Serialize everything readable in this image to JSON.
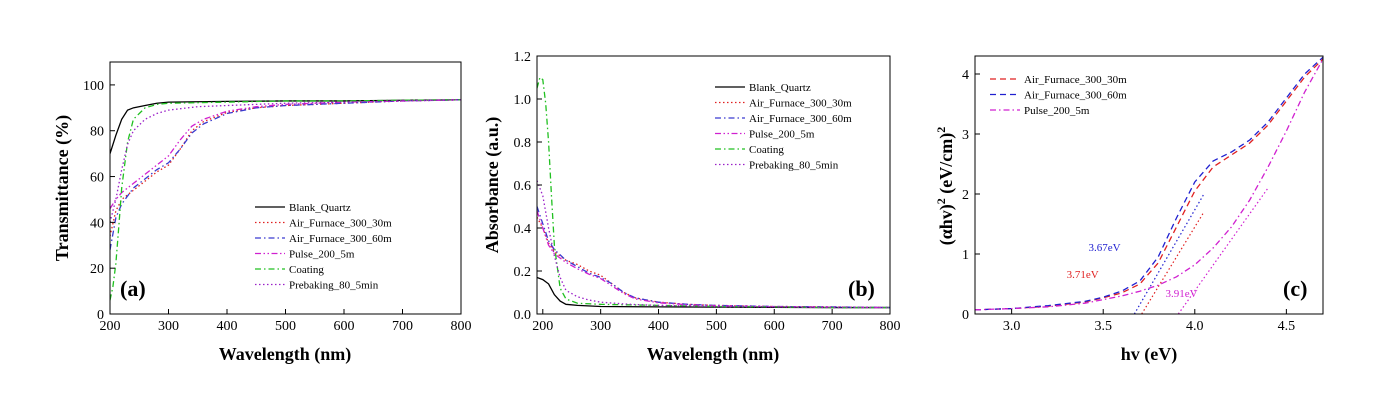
{
  "chart_data": [
    {
      "type": "line",
      "panel_label": "(a)",
      "xlabel": "Wavelength (nm)",
      "ylabel": "Transmittance (%)",
      "xlim": [
        200,
        800
      ],
      "ylim": [
        0,
        110
      ],
      "xticks": [
        200,
        300,
        400,
        500,
        600,
        700,
        800
      ],
      "yticks": [
        0,
        20,
        40,
        60,
        80,
        100
      ],
      "legend_position": "lower-right",
      "series": [
        {
          "name": "Blank_Quartz",
          "color": "#000000",
          "dash": "solid",
          "x": [
            200,
            210,
            220,
            230,
            240,
            260,
            280,
            300,
            400,
            500,
            600,
            700,
            800
          ],
          "y": [
            70,
            78,
            85,
            89,
            90,
            91,
            92,
            92.5,
            92.8,
            93,
            93,
            93.3,
            93.5
          ]
        },
        {
          "name": "Air_Furnace_300_30m",
          "color": "#e02020",
          "dash": "dot",
          "x": [
            200,
            210,
            220,
            240,
            260,
            280,
            300,
            320,
            340,
            360,
            400,
            450,
            500,
            600,
            700,
            800
          ],
          "y": [
            34,
            45,
            50,
            54,
            58,
            62,
            65,
            72,
            80,
            84,
            88,
            90,
            91,
            92,
            93,
            93.5
          ]
        },
        {
          "name": "Air_Furnace_300_60m",
          "color": "#3a3ad0",
          "dash": "dashdot",
          "x": [
            200,
            210,
            220,
            240,
            260,
            280,
            300,
            320,
            340,
            360,
            400,
            450,
            500,
            600,
            700,
            800
          ],
          "y": [
            28,
            42,
            48,
            55,
            59,
            63,
            66,
            72,
            79,
            83,
            87.5,
            90,
            91,
            92,
            93,
            93.5
          ]
        },
        {
          "name": "Pulse_200_5m",
          "color": "#d020d0",
          "dash": "dashdotdot",
          "x": [
            200,
            210,
            220,
            240,
            260,
            280,
            300,
            320,
            340,
            360,
            400,
            450,
            500,
            600,
            700,
            800
          ],
          "y": [
            46,
            50,
            53,
            57,
            61,
            65,
            69,
            76,
            82,
            85,
            88.5,
            90.5,
            91.5,
            92.5,
            93,
            93.5
          ]
        },
        {
          "name": "Coating",
          "color": "#20c020",
          "dash": "dashdot",
          "x": [
            200,
            205,
            210,
            215,
            220,
            230,
            240,
            260,
            280,
            300,
            400,
            500,
            600,
            700,
            800
          ],
          "y": [
            6,
            12,
            22,
            38,
            55,
            75,
            85,
            90,
            91.5,
            92,
            92.5,
            93,
            93,
            93.3,
            93.5
          ]
        },
        {
          "name": "Prebaking_80_5min",
          "color": "#9a20c8",
          "dash": "dot",
          "x": [
            200,
            210,
            220,
            230,
            240,
            260,
            280,
            300,
            350,
            400,
            500,
            600,
            700,
            800
          ],
          "y": [
            40,
            50,
            63,
            74,
            80,
            85,
            87.5,
            89,
            90.5,
            91,
            92,
            92.5,
            93,
            93.5
          ]
        }
      ]
    },
    {
      "type": "line",
      "panel_label": "(b)",
      "xlabel": "Wavelength (nm)",
      "ylabel": "Absorbance (a.u.)",
      "xlim": [
        190,
        800
      ],
      "ylim": [
        0,
        1.2
      ],
      "xticks": [
        200,
        300,
        400,
        500,
        600,
        700,
        800
      ],
      "yticks": [
        0.0,
        0.2,
        0.4,
        0.6,
        0.8,
        1.0,
        1.2
      ],
      "ytick_labels": [
        "0.0",
        "0.2",
        "0.4",
        "0.6",
        "0.8",
        "1.0",
        "1.2"
      ],
      "legend_position": "top-right",
      "series": [
        {
          "name": "Blank_Quartz",
          "color": "#000000",
          "dash": "solid",
          "x": [
            190,
            200,
            210,
            220,
            230,
            240,
            260,
            300,
            400,
            500,
            600,
            700,
            800
          ],
          "y": [
            0.17,
            0.16,
            0.14,
            0.09,
            0.06,
            0.045,
            0.04,
            0.035,
            0.033,
            0.032,
            0.031,
            0.03,
            0.03
          ]
        },
        {
          "name": "Air_Furnace_300_30m",
          "color": "#e02020",
          "dash": "dot",
          "x": [
            190,
            200,
            210,
            220,
            240,
            260,
            280,
            300,
            320,
            340,
            360,
            400,
            450,
            500,
            600,
            700,
            800
          ],
          "y": [
            0.45,
            0.4,
            0.33,
            0.29,
            0.25,
            0.23,
            0.2,
            0.18,
            0.14,
            0.1,
            0.075,
            0.055,
            0.045,
            0.04,
            0.035,
            0.033,
            0.03
          ]
        },
        {
          "name": "Air_Furnace_300_60m",
          "color": "#3a3ad0",
          "dash": "dashdot",
          "x": [
            190,
            200,
            210,
            220,
            240,
            260,
            280,
            300,
            320,
            340,
            360,
            400,
            450,
            500,
            600,
            700,
            800
          ],
          "y": [
            0.5,
            0.42,
            0.34,
            0.3,
            0.25,
            0.22,
            0.19,
            0.17,
            0.14,
            0.1,
            0.075,
            0.055,
            0.045,
            0.04,
            0.035,
            0.033,
            0.03
          ]
        },
        {
          "name": "Pulse_200_5m",
          "color": "#d020d0",
          "dash": "dashdotdot",
          "x": [
            190,
            200,
            210,
            220,
            240,
            260,
            280,
            300,
            320,
            340,
            360,
            400,
            450,
            500,
            600,
            700,
            800
          ],
          "y": [
            0.48,
            0.4,
            0.32,
            0.28,
            0.24,
            0.21,
            0.185,
            0.165,
            0.13,
            0.095,
            0.07,
            0.052,
            0.043,
            0.038,
            0.034,
            0.032,
            0.03
          ]
        },
        {
          "name": "Coating",
          "color": "#20c020",
          "dash": "dashdot",
          "x": [
            190,
            195,
            200,
            205,
            210,
            215,
            220,
            230,
            240,
            260,
            300,
            400,
            500,
            600,
            700,
            800
          ],
          "y": [
            1.05,
            1.1,
            1.09,
            0.98,
            0.8,
            0.55,
            0.32,
            0.12,
            0.07,
            0.05,
            0.045,
            0.04,
            0.035,
            0.033,
            0.03,
            0.03
          ]
        },
        {
          "name": "Prebaking_80_5min",
          "color": "#9a20c8",
          "dash": "dot",
          "x": [
            190,
            200,
            210,
            220,
            230,
            240,
            260,
            280,
            300,
            350,
            400,
            500,
            600,
            700,
            800
          ],
          "y": [
            0.62,
            0.55,
            0.4,
            0.27,
            0.17,
            0.11,
            0.08,
            0.065,
            0.055,
            0.045,
            0.04,
            0.035,
            0.033,
            0.03,
            0.03
          ]
        }
      ]
    },
    {
      "type": "line",
      "panel_label": "(c)",
      "xlabel": "hv (eV)",
      "ylabel": "(αhv)² (eV/cm)²",
      "ylabel_parts": [
        "(αhv)",
        "2",
        " (eV/cm)",
        "2"
      ],
      "xlim": [
        2.8,
        4.7
      ],
      "ylim": [
        0,
        4.3
      ],
      "xticks": [
        3.0,
        3.5,
        4.0,
        4.5
      ],
      "xtick_labels": [
        "3.0",
        "3.5",
        "4.0",
        "4.5"
      ],
      "yticks": [
        0,
        1,
        2,
        3,
        4
      ],
      "legend_position": "top-left",
      "series": [
        {
          "name": "Air_Furnace_300_30m",
          "color": "#e02020",
          "dash": "dash",
          "x": [
            2.8,
            3.0,
            3.2,
            3.4,
            3.5,
            3.6,
            3.7,
            3.8,
            3.9,
            4.0,
            4.1,
            4.2,
            4.3,
            4.4,
            4.5,
            4.6,
            4.7
          ],
          "y": [
            0.07,
            0.09,
            0.13,
            0.2,
            0.27,
            0.35,
            0.5,
            0.85,
            1.45,
            2.05,
            2.45,
            2.65,
            2.85,
            3.15,
            3.55,
            3.95,
            4.25
          ]
        },
        {
          "name": "Air_Furnace_300_60m",
          "color": "#2020d0",
          "dash": "dash",
          "x": [
            2.8,
            3.0,
            3.2,
            3.4,
            3.5,
            3.6,
            3.7,
            3.8,
            3.9,
            4.0,
            4.1,
            4.2,
            4.3,
            4.4,
            4.5,
            4.6,
            4.7
          ],
          "y": [
            0.07,
            0.09,
            0.14,
            0.21,
            0.28,
            0.38,
            0.55,
            0.95,
            1.6,
            2.2,
            2.55,
            2.7,
            2.9,
            3.2,
            3.6,
            4.0,
            4.28
          ]
        },
        {
          "name": "Pulse_200_5m",
          "color": "#d020d0",
          "dash": "dashdot",
          "x": [
            2.8,
            3.0,
            3.2,
            3.4,
            3.5,
            3.6,
            3.7,
            3.8,
            3.9,
            4.0,
            4.1,
            4.2,
            4.3,
            4.4,
            4.5,
            4.6,
            4.7
          ],
          "y": [
            0.07,
            0.09,
            0.12,
            0.18,
            0.24,
            0.3,
            0.38,
            0.48,
            0.62,
            0.82,
            1.1,
            1.45,
            1.9,
            2.45,
            3.05,
            3.7,
            4.25
          ]
        }
      ],
      "fit_lines": [
        {
          "color": "#e02020",
          "x": [
            3.71,
            4.05
          ],
          "y": [
            0.0,
            1.7
          ]
        },
        {
          "color": "#2020d0",
          "x": [
            3.67,
            4.05
          ],
          "y": [
            0.0,
            2.0
          ]
        },
        {
          "color": "#d020d0",
          "x": [
            3.91,
            4.4
          ],
          "y": [
            0.0,
            2.1
          ]
        }
      ],
      "annotations": [
        {
          "text": "3.67eV",
          "color": "#2020d0",
          "x": 3.42,
          "y": 1.05
        },
        {
          "text": "3.71eV",
          "color": "#e02020",
          "x": 3.3,
          "y": 0.6
        },
        {
          "text": "3.91eV",
          "color": "#d020d0",
          "x": 3.84,
          "y": 0.28
        }
      ]
    }
  ]
}
